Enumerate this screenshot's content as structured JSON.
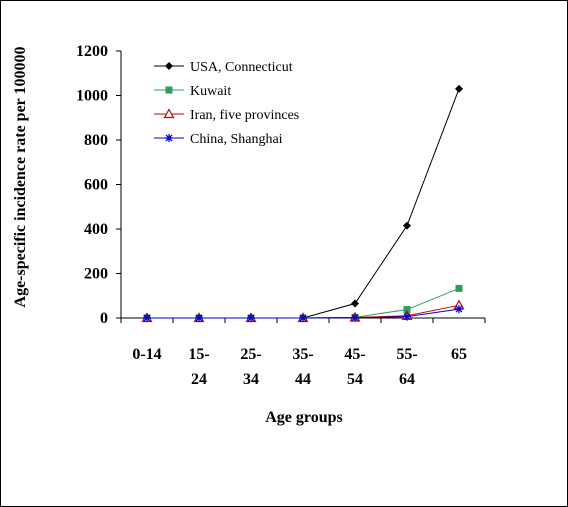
{
  "chart_data": {
    "type": "line",
    "title": "",
    "xlabel": "Age groups",
    "ylabel": "Age-specific incidence rate per 100000",
    "categories": [
      [
        "0-14",
        ""
      ],
      [
        "15-",
        "24"
      ],
      [
        "25-",
        "34"
      ],
      [
        "35-",
        "44"
      ],
      [
        "45-",
        "54"
      ],
      [
        "55-",
        "64"
      ],
      [
        "65",
        ""
      ]
    ],
    "ylim": [
      0,
      1200
    ],
    "yticks": [
      0,
      200,
      400,
      600,
      800,
      1000,
      1200
    ],
    "grid": false,
    "legend": "top-left, inside",
    "series": [
      {
        "name": "USA, Connecticut",
        "color": "#000000",
        "marker": "diamond",
        "values": [
          0,
          0,
          0,
          0,
          65,
          415,
          1030
        ]
      },
      {
        "name": "Kuwait",
        "color": "#2e9e5b",
        "marker": "square",
        "values": [
          0,
          0,
          0,
          0,
          3,
          38,
          133
        ]
      },
      {
        "name": "Iran, five provinces",
        "color": "#cc0000",
        "marker": "triangle-open",
        "values": [
          0,
          0,
          0,
          0,
          2,
          10,
          57
        ]
      },
      {
        "name": "China, Shanghai",
        "color": "#0000cc",
        "marker": "asterisk",
        "values": [
          0,
          0,
          0,
          0,
          1,
          6,
          40
        ]
      }
    ]
  }
}
